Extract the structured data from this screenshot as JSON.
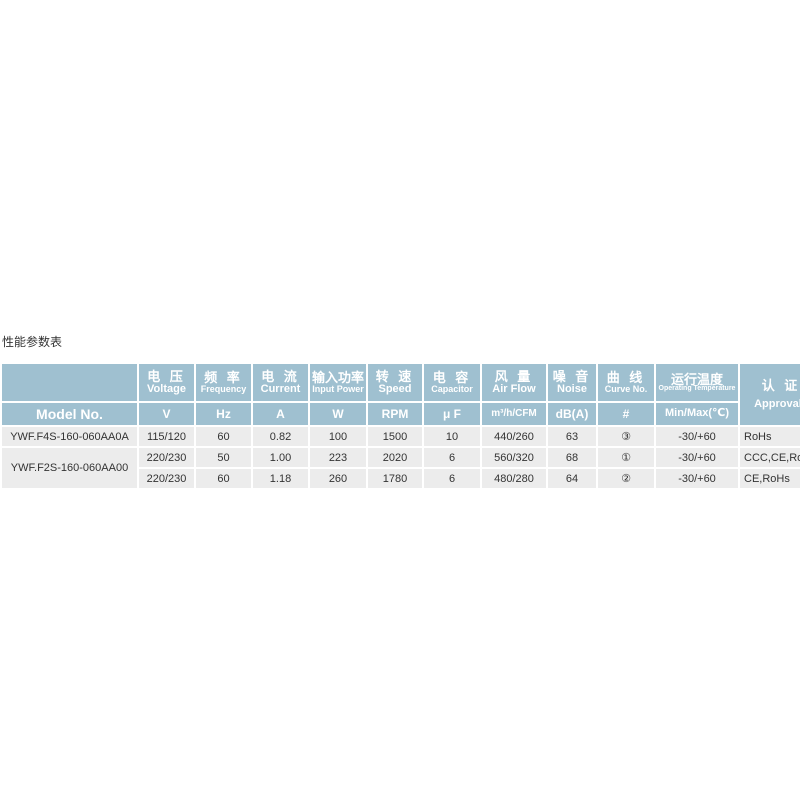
{
  "title": "性能参数表",
  "header": {
    "model": "Model No.",
    "cols": [
      {
        "cn": "电 压",
        "en": "Voltage",
        "unit": "V"
      },
      {
        "cn": "频 率",
        "en": "Frequency",
        "unit": "Hz"
      },
      {
        "cn": "电 流",
        "en": "Current",
        "unit": "A"
      },
      {
        "cn": "输入功率",
        "en": "Input Power",
        "unit": "W"
      },
      {
        "cn": "转 速",
        "en": "Speed",
        "unit": "RPM"
      },
      {
        "cn": "电 容",
        "en": "Capacitor",
        "unit": "μ F"
      },
      {
        "cn": "风 量",
        "en": "Air Flow",
        "unit": "m³/h/CFM"
      },
      {
        "cn": "噪 音",
        "en": "Noise",
        "unit": "dB(A)"
      },
      {
        "cn": "曲 线",
        "en": "Curve No.",
        "unit": "#"
      },
      {
        "cn": "运行温度",
        "en": "Operating Temperature",
        "unit": "Min/Max(℃)"
      }
    ],
    "approvals_cn": "认 证",
    "approvals_en": "Approvals"
  },
  "rows": [
    {
      "model": "YWF.F4S-160-060AA0A",
      "v": "115/120",
      "hz": "60",
      "a": "0.82",
      "w": "100",
      "rpm": "1500",
      "uf": "10",
      "flow": "440/260",
      "db": "63",
      "curve": "③",
      "temp": "-30/+60",
      "appr": "RoHs"
    },
    {
      "model": "YWF.F2S-160-060AA00",
      "v": "220/230",
      "hz": "50",
      "a": "1.00",
      "w": "223",
      "rpm": "2020",
      "uf": "6",
      "flow": "560/320",
      "db": "68",
      "curve": "①",
      "temp": "-30/+60",
      "appr": "CCC,CE,RoHs"
    },
    {
      "v": "220/230",
      "hz": "60",
      "a": "1.18",
      "w": "260",
      "rpm": "1780",
      "uf": "6",
      "flow": "480/280",
      "db": "64",
      "curve": "②",
      "temp": "-30/+60",
      "appr": "CE,RoHs"
    }
  ]
}
